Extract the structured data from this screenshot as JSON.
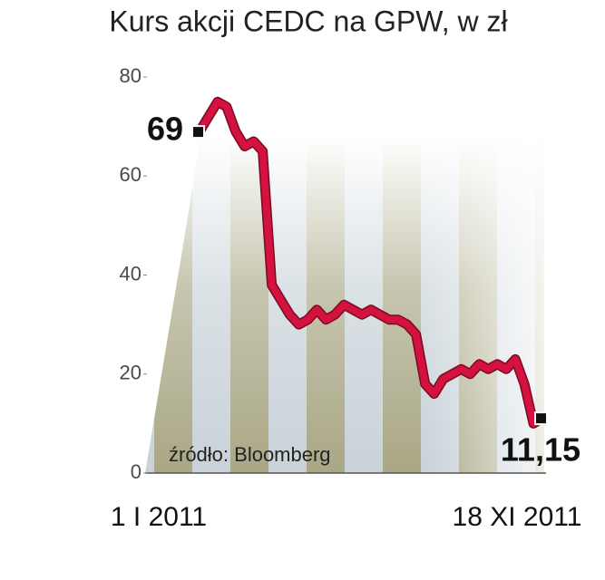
{
  "chart_data": {
    "type": "line",
    "title": "Kurs akcji CEDC na GPW, w zł",
    "source": "źródło: Bloomberg",
    "categories": [
      "1 I 2011",
      null,
      null,
      null,
      null,
      null,
      null,
      null,
      null,
      null,
      null,
      null,
      null,
      null,
      null,
      null,
      null,
      null,
      null,
      null,
      null,
      null,
      null,
      null,
      null,
      null,
      null,
      null,
      null,
      null,
      null,
      null,
      null,
      null,
      null,
      null,
      null,
      null,
      "18 XI 2011"
    ],
    "series": [
      {
        "color": "#d3123f",
        "values": [
          69,
          72,
          75,
          74,
          69,
          66,
          67,
          65,
          38,
          35,
          32,
          30,
          31,
          33,
          31,
          32,
          34,
          33,
          32,
          33,
          32,
          31,
          31,
          30,
          28,
          18,
          16,
          19,
          20,
          21,
          20,
          22,
          21,
          22,
          21,
          23,
          18,
          10,
          11.15
        ],
        "value_labels": [
          "69",
          null,
          null,
          null,
          null,
          null,
          null,
          null,
          null,
          null,
          null,
          null,
          null,
          null,
          null,
          null,
          null,
          null,
          null,
          null,
          null,
          null,
          null,
          null,
          null,
          null,
          null,
          null,
          null,
          null,
          null,
          null,
          null,
          null,
          null,
          null,
          null,
          null,
          "11,15"
        ]
      }
    ],
    "ylim": [
      0,
      80
    ],
    "yticks": [
      0,
      20,
      40,
      60,
      80
    ],
    "grid": false
  }
}
